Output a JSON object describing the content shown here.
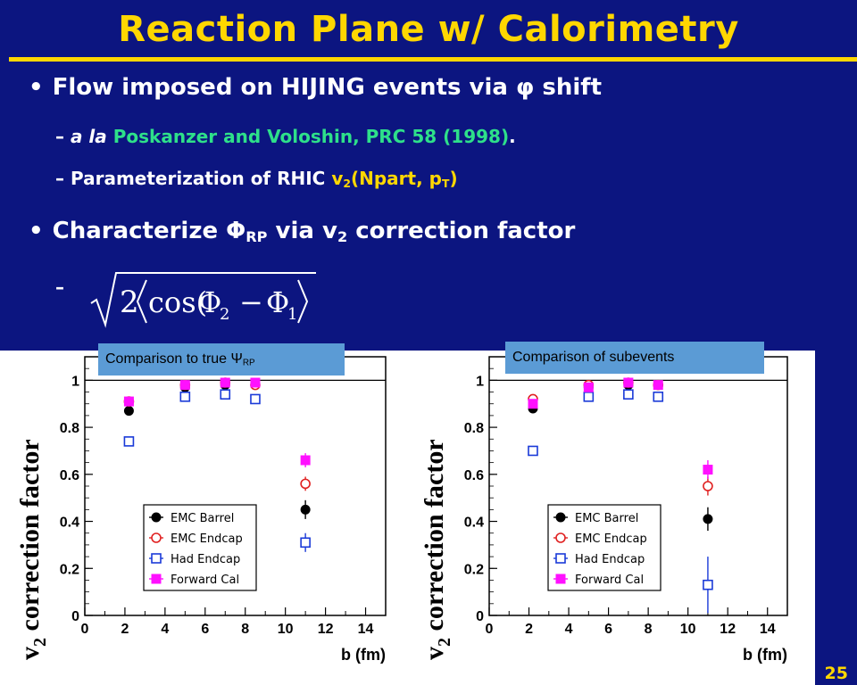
{
  "slide": {
    "title": "Reaction Plane w/ Calorimetry",
    "bullet1": {
      "pre": "Flow imposed on HIJING events via ",
      "symbol": "φ",
      "post": " shift"
    },
    "sub1": {
      "dash": "–",
      "italic": "a la ",
      "ref": "Poskanzer and Voloshin, PRC 58 (1998)",
      "end": "."
    },
    "sub2": {
      "dash": "–",
      "text": "Parameterization of RHIC ",
      "v": "v",
      "v_sub": "2",
      "args": "(Npart, p",
      "args_sub": "T",
      "close": ")"
    },
    "bullet2": {
      "pre": "Characterize ",
      "symbol": "Φ",
      "symbol_sub": "RP",
      "mid": " via v",
      "mid_sub": "2",
      "post": " correction factor"
    },
    "sub3": {
      "dash": "–"
    },
    "formula": {
      "two": "2",
      "cos": "cos(",
      "phi2": "Φ",
      "phi2_sub": "2",
      "minus": "−",
      "phi1": "Φ",
      "phi1_sub": "1"
    },
    "page_number": "25"
  },
  "colors": {
    "background": "#0c1580",
    "title": "#ffd700",
    "reference": "#2ee08a",
    "label_box": "#5b9bd5",
    "emc_barrel": "#000000",
    "emc_endcap": "#e02020",
    "had_endcap": "#1a3ad8",
    "forward_cal": "#ff10ff"
  },
  "chart_data": [
    {
      "type": "scatter",
      "label": "Comparison to true ",
      "label_symbol": "Ψ",
      "label_sub": "RP",
      "xlabel": "b (fm)",
      "ylabel": "v",
      "ylabel_sub": "2",
      "ylabel_rest": " correction factor",
      "xlim": [
        0,
        15
      ],
      "ylim": [
        0,
        1.1
      ],
      "xticks": [
        "0",
        "2",
        "4",
        "6",
        "8",
        "10",
        "12",
        "14"
      ],
      "yticks": [
        "0",
        "0.2",
        "0.4",
        "0.6",
        "0.8",
        "1"
      ],
      "legend_position": "bottom-right",
      "series": [
        {
          "name": "EMC Barrel",
          "marker": "filled-circle",
          "x": [
            2.2,
            5.0,
            7.0,
            8.5,
            11.0
          ],
          "y": [
            0.87,
            0.97,
            0.98,
            0.98,
            0.45
          ],
          "err": [
            0.02,
            0.01,
            0.01,
            0.01,
            0.04
          ]
        },
        {
          "name": "EMC Endcap",
          "marker": "open-circle",
          "x": [
            2.2,
            5.0,
            7.0,
            8.5,
            11.0
          ],
          "y": [
            0.91,
            0.98,
            0.99,
            0.98,
            0.56
          ],
          "err": [
            0.01,
            0.01,
            0.01,
            0.01,
            0.03
          ]
        },
        {
          "name": "Had Endcap",
          "marker": "open-square",
          "x": [
            2.2,
            5.0,
            7.0,
            8.5,
            11.0
          ],
          "y": [
            0.74,
            0.93,
            0.94,
            0.92,
            0.31
          ],
          "err": [
            0.02,
            0.01,
            0.01,
            0.01,
            0.04
          ]
        },
        {
          "name": "Forward Cal",
          "marker": "filled-square",
          "x": [
            2.2,
            5.0,
            7.0,
            8.5,
            11.0
          ],
          "y": [
            0.91,
            0.98,
            0.99,
            0.99,
            0.66
          ],
          "err": [
            0.01,
            0.01,
            0.01,
            0.01,
            0.03
          ]
        }
      ]
    },
    {
      "type": "scatter",
      "label": "Comparison of subevents",
      "xlabel": "b (fm)",
      "ylabel": "v",
      "ylabel_sub": "2",
      "ylabel_rest": " correction factor",
      "xlim": [
        0,
        15
      ],
      "ylim": [
        0,
        1.1
      ],
      "xticks": [
        "0",
        "2",
        "4",
        "6",
        "8",
        "10",
        "12",
        "14"
      ],
      "yticks": [
        "0",
        "0.2",
        "0.4",
        "0.6",
        "0.8",
        "1"
      ],
      "legend_position": "bottom-right",
      "series": [
        {
          "name": "EMC Barrel",
          "marker": "filled-circle",
          "x": [
            2.2,
            5.0,
            7.0,
            8.5,
            11.0
          ],
          "y": [
            0.88,
            0.97,
            0.98,
            0.98,
            0.41
          ],
          "err": [
            0.02,
            0.01,
            0.01,
            0.01,
            0.05
          ]
        },
        {
          "name": "EMC Endcap",
          "marker": "open-circle",
          "x": [
            2.2,
            5.0,
            7.0,
            8.5,
            11.0
          ],
          "y": [
            0.92,
            0.98,
            0.99,
            0.98,
            0.55
          ],
          "err": [
            0.01,
            0.01,
            0.01,
            0.01,
            0.04
          ]
        },
        {
          "name": "Had Endcap",
          "marker": "open-square",
          "x": [
            2.2,
            5.0,
            7.0,
            8.5,
            11.0
          ],
          "y": [
            0.7,
            0.93,
            0.94,
            0.93,
            0.13
          ],
          "err": [
            0.02,
            0.01,
            0.01,
            0.01,
            0.12
          ]
        },
        {
          "name": "Forward Cal",
          "marker": "filled-square",
          "x": [
            2.2,
            5.0,
            7.0,
            8.5,
            11.0
          ],
          "y": [
            0.9,
            0.97,
            0.99,
            0.98,
            0.62
          ],
          "err": [
            0.01,
            0.01,
            0.01,
            0.01,
            0.04
          ]
        }
      ]
    }
  ]
}
